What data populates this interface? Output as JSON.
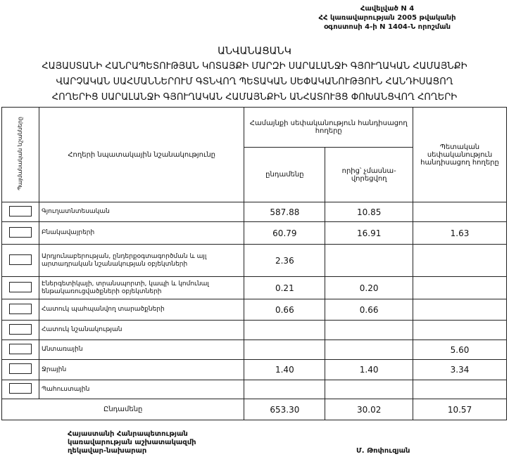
{
  "annex": [
    "Հավելված N 4",
    "ՀՀ կառավարության 2005 թվականի",
    "օգոստոսի 4-ի N 1404-Ն որոշման"
  ],
  "title": [
    "ԱՆՎԱՆԱՑԱՆԿ",
    "ՀԱՅԱՍՏԱՆԻ ՀԱՆՐԱՊԵՏՈՒԹՅԱՆ ԿՈՏԱՅՔԻ ՄԱՐԶԻ ՍԱՐԱԼԱՆՋԻ ԳՅՈՒՂԱԿԱՆ ՀԱՄԱՅՆՔԻ",
    "ՎԱՐՉԱԿԱՆ ՍԱՀՄԱՆՆԵՐՈՒՄ ԳՏՆՎՈՂ ՊԵՏԱԿԱՆ ՍԵՓԱԿԱՆՈՒԹՅՈՒՆ ՀԱՆԴԻՍԱՑՈՂ",
    "ՀՈՂԵՐԻՑ ՍԱՐԱԼԱՆՋԻ ԳՅՈՒՂԱԿԱՆ ՀԱՄԱՅՆՔԻՆ ԱՆՀԱՏՈՒՅՑ ՓՈԽԱՆՑՎՈՂ ՀՈՂԵՐԻ"
  ],
  "table": {
    "headers": {
      "symbols": "Պայմանական նշանները",
      "purpose": "Հողերի նպատակային նշանակությունը",
      "community": "Համայնքի սեփականություն հանդիսացող հողերը",
      "total": "ընդամենը",
      "non_privatized": "որից՝ չմասնա-վորեցվող",
      "state": "Պետական սեփականություն հանդիսացող հողերը"
    },
    "rows": [
      {
        "name": "Գյուղատնտեսական",
        "total": "587.88",
        "non_privatized": "10.85",
        "state": ""
      },
      {
        "name": "Բնակավայրերի",
        "total": "60.79",
        "non_privatized": "16.91",
        "state": "1.63"
      },
      {
        "name": "Արդյունաբերության, ընդերքօգտագործման և այլ արտադրական նշանակության օբյեկտների",
        "total": "2.36",
        "non_privatized": "",
        "state": ""
      },
      {
        "name": "Էներգետիկայի, տրանսպորտի, կապի և կոմունալ ենթակառուցվածքների օբյեկտների",
        "total": "0.21",
        "non_privatized": "0.20",
        "state": ""
      },
      {
        "name": "Հատուկ պահպանվող տարածքների",
        "total": "0.66",
        "non_privatized": "0.66",
        "state": ""
      },
      {
        "name": "Հատուկ նշանակության",
        "total": "",
        "non_privatized": "",
        "state": ""
      },
      {
        "name": "Անտառային",
        "total": "",
        "non_privatized": "",
        "state": "5.60"
      },
      {
        "name": "Ջրային",
        "total": "1.40",
        "non_privatized": "1.40",
        "state": "3.34"
      },
      {
        "name": "Պահուստային",
        "total": "",
        "non_privatized": "",
        "state": ""
      }
    ],
    "summary": {
      "name": "Ընդամենը",
      "total": "653.30",
      "non_privatized": "30.02",
      "state": "10.57"
    }
  },
  "signature": {
    "position": [
      "Հայաստանի Հանրապետության",
      "կառավարության աշխատակազմի",
      "ղեկավար-նախարար"
    ],
    "name": "Մ. Թոփուզյան"
  }
}
